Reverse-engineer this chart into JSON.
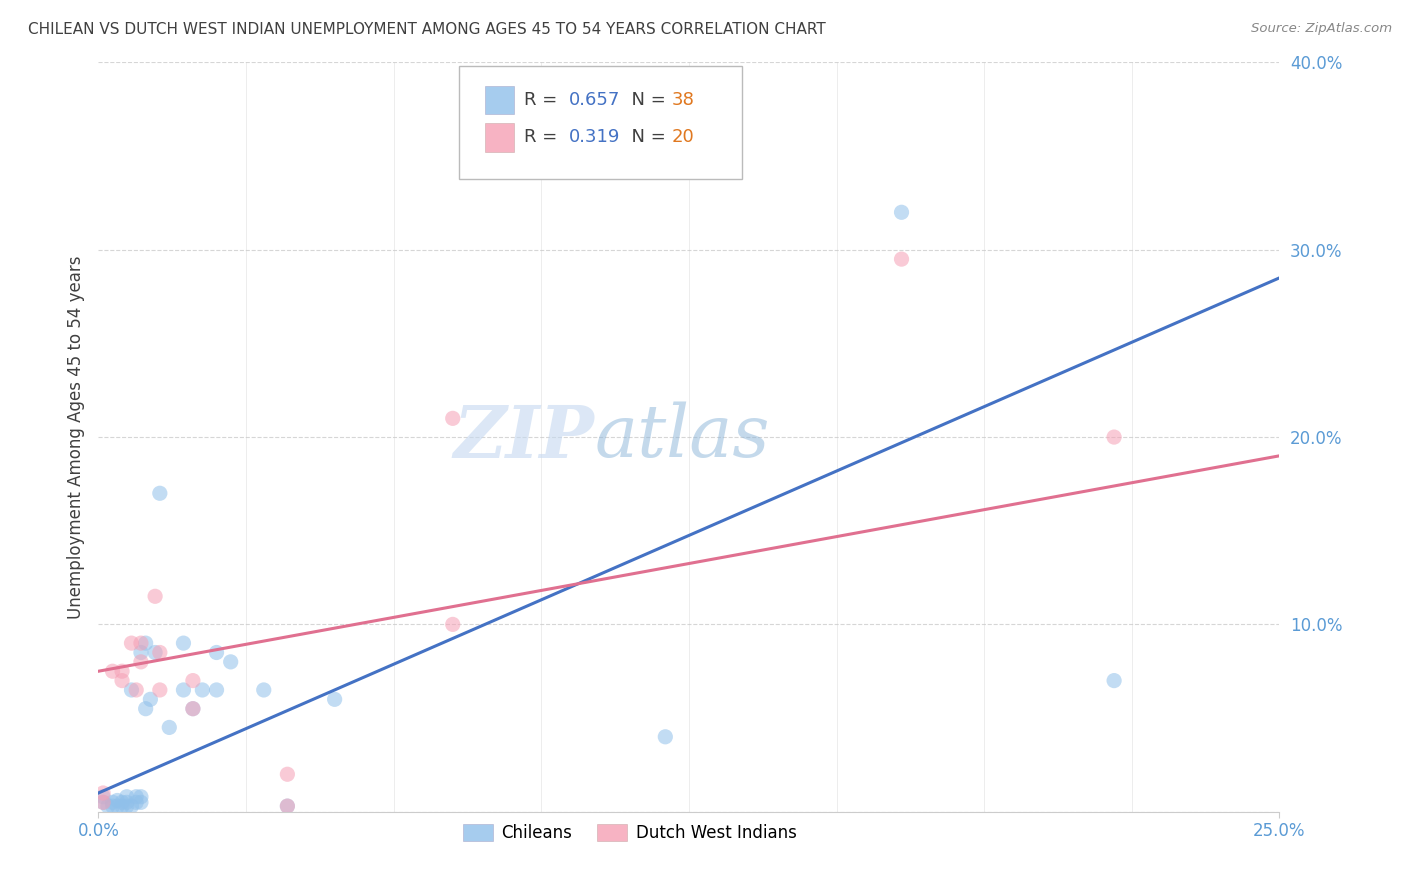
{
  "title": "CHILEAN VS DUTCH WEST INDIAN UNEMPLOYMENT AMONG AGES 45 TO 54 YEARS CORRELATION CHART",
  "source": "Source: ZipAtlas.com",
  "ylabel": "Unemployment Among Ages 45 to 54 years",
  "xlim": [
    0.0,
    0.25
  ],
  "ylim": [
    0.0,
    0.4
  ],
  "xtick_positions": [
    0.0,
    0.25
  ],
  "xtick_labels": [
    "0.0%",
    "25.0%"
  ],
  "ytick_positions": [
    0.0,
    0.1,
    0.2,
    0.3,
    0.4
  ],
  "ytick_labels": [
    "",
    "10.0%",
    "20.0%",
    "30.0%",
    "40.0%"
  ],
  "grid_yticks": [
    0.1,
    0.2,
    0.3,
    0.4
  ],
  "grid_xticks": [
    0.0,
    0.03125,
    0.0625,
    0.09375,
    0.125,
    0.15625,
    0.1875,
    0.21875,
    0.25
  ],
  "chilean_color": "#90c0ea",
  "dutch_color": "#f5a0b5",
  "blue_line_color": "#4472c4",
  "pink_line_color": "#e07090",
  "R_chilean": 0.657,
  "N_chilean": 38,
  "R_dutch": 0.319,
  "N_dutch": 20,
  "chilean_x": [
    0.001,
    0.001,
    0.002,
    0.003,
    0.003,
    0.004,
    0.004,
    0.005,
    0.005,
    0.006,
    0.006,
    0.006,
    0.007,
    0.007,
    0.008,
    0.008,
    0.009,
    0.009,
    0.009,
    0.01,
    0.01,
    0.011,
    0.012,
    0.013,
    0.015,
    0.018,
    0.018,
    0.02,
    0.022,
    0.025,
    0.025,
    0.028,
    0.035,
    0.04,
    0.05,
    0.12,
    0.17,
    0.215
  ],
  "chilean_y": [
    0.005,
    0.008,
    0.003,
    0.003,
    0.005,
    0.003,
    0.006,
    0.003,
    0.005,
    0.003,
    0.005,
    0.008,
    0.003,
    0.065,
    0.005,
    0.008,
    0.005,
    0.008,
    0.085,
    0.055,
    0.09,
    0.06,
    0.085,
    0.17,
    0.045,
    0.065,
    0.09,
    0.055,
    0.065,
    0.065,
    0.085,
    0.08,
    0.065,
    0.003,
    0.06,
    0.04,
    0.32,
    0.07
  ],
  "dutch_x": [
    0.001,
    0.001,
    0.003,
    0.005,
    0.005,
    0.007,
    0.008,
    0.009,
    0.009,
    0.012,
    0.013,
    0.013,
    0.02,
    0.02,
    0.04,
    0.04,
    0.075,
    0.075,
    0.17,
    0.215
  ],
  "dutch_y": [
    0.005,
    0.01,
    0.075,
    0.07,
    0.075,
    0.09,
    0.065,
    0.08,
    0.09,
    0.115,
    0.065,
    0.085,
    0.055,
    0.07,
    0.003,
    0.02,
    0.1,
    0.21,
    0.295,
    0.2
  ],
  "background_color": "#ffffff",
  "grid_color": "#cccccc",
  "title_color": "#404040",
  "axis_tick_color": "#5b9bd5",
  "watermark_zip": "ZIP",
  "watermark_atlas": "atlas",
  "legend_label_chilean": "Chileans",
  "legend_label_dutch": "Dutch West Indians",
  "marker_size": 120,
  "marker_alpha": 0.55
}
